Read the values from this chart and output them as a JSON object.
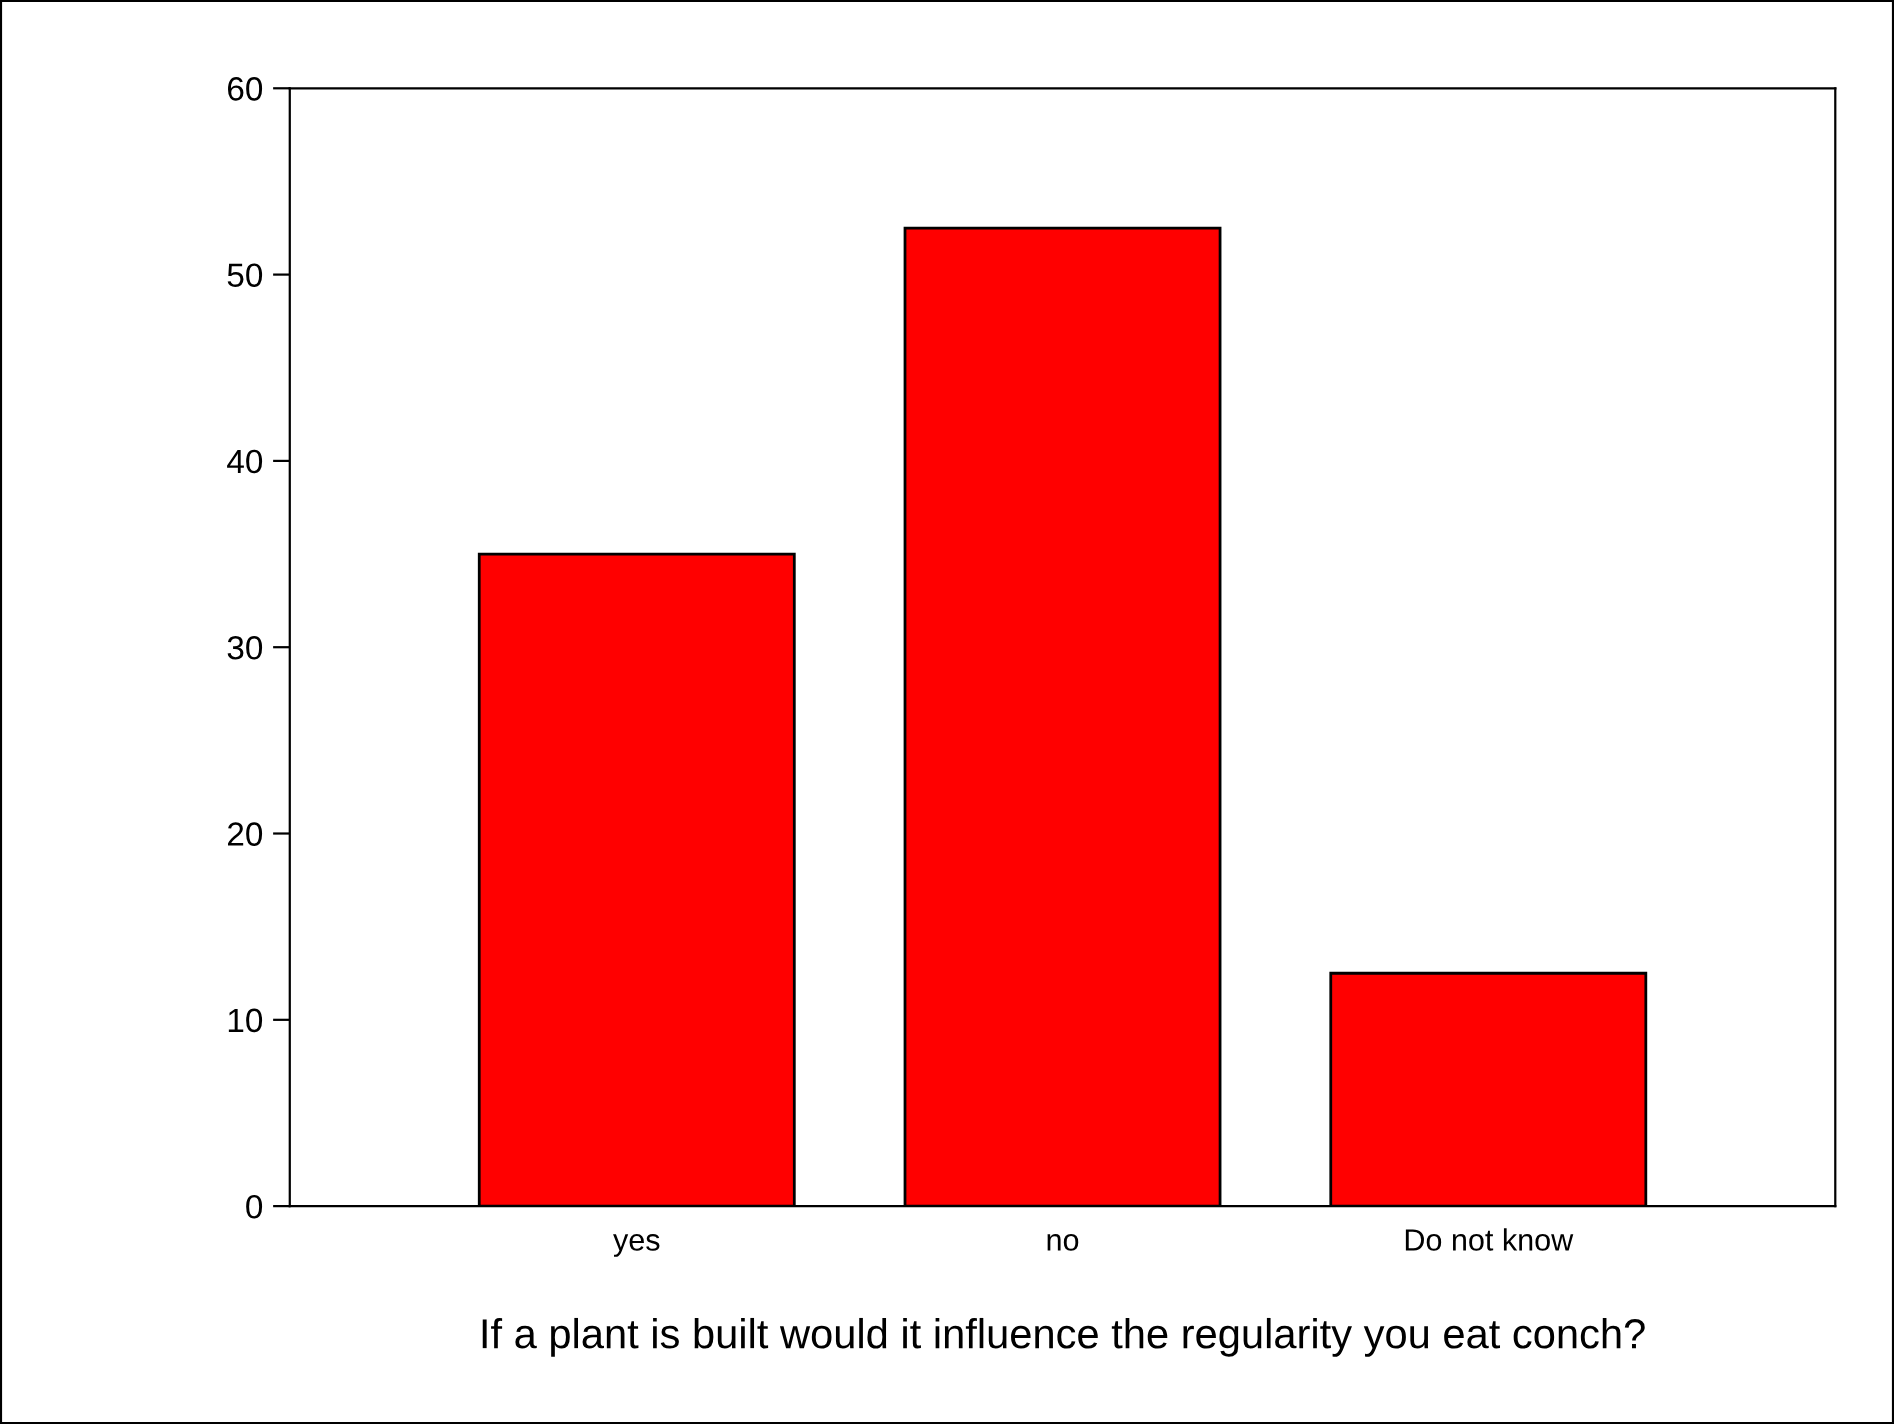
{
  "chart_data": {
    "type": "bar",
    "xlabel": "If a plant is built would it influence the regularity you eat conch?",
    "categories": [
      "yes",
      "no",
      "Do not know"
    ],
    "values": [
      35,
      52.5,
      12.5
    ],
    "color": "#ff0000",
    "ylim": [
      0,
      60
    ],
    "yticks": [
      0,
      10,
      20,
      30,
      40,
      50,
      60
    ],
    "grid": false,
    "legend": false
  }
}
